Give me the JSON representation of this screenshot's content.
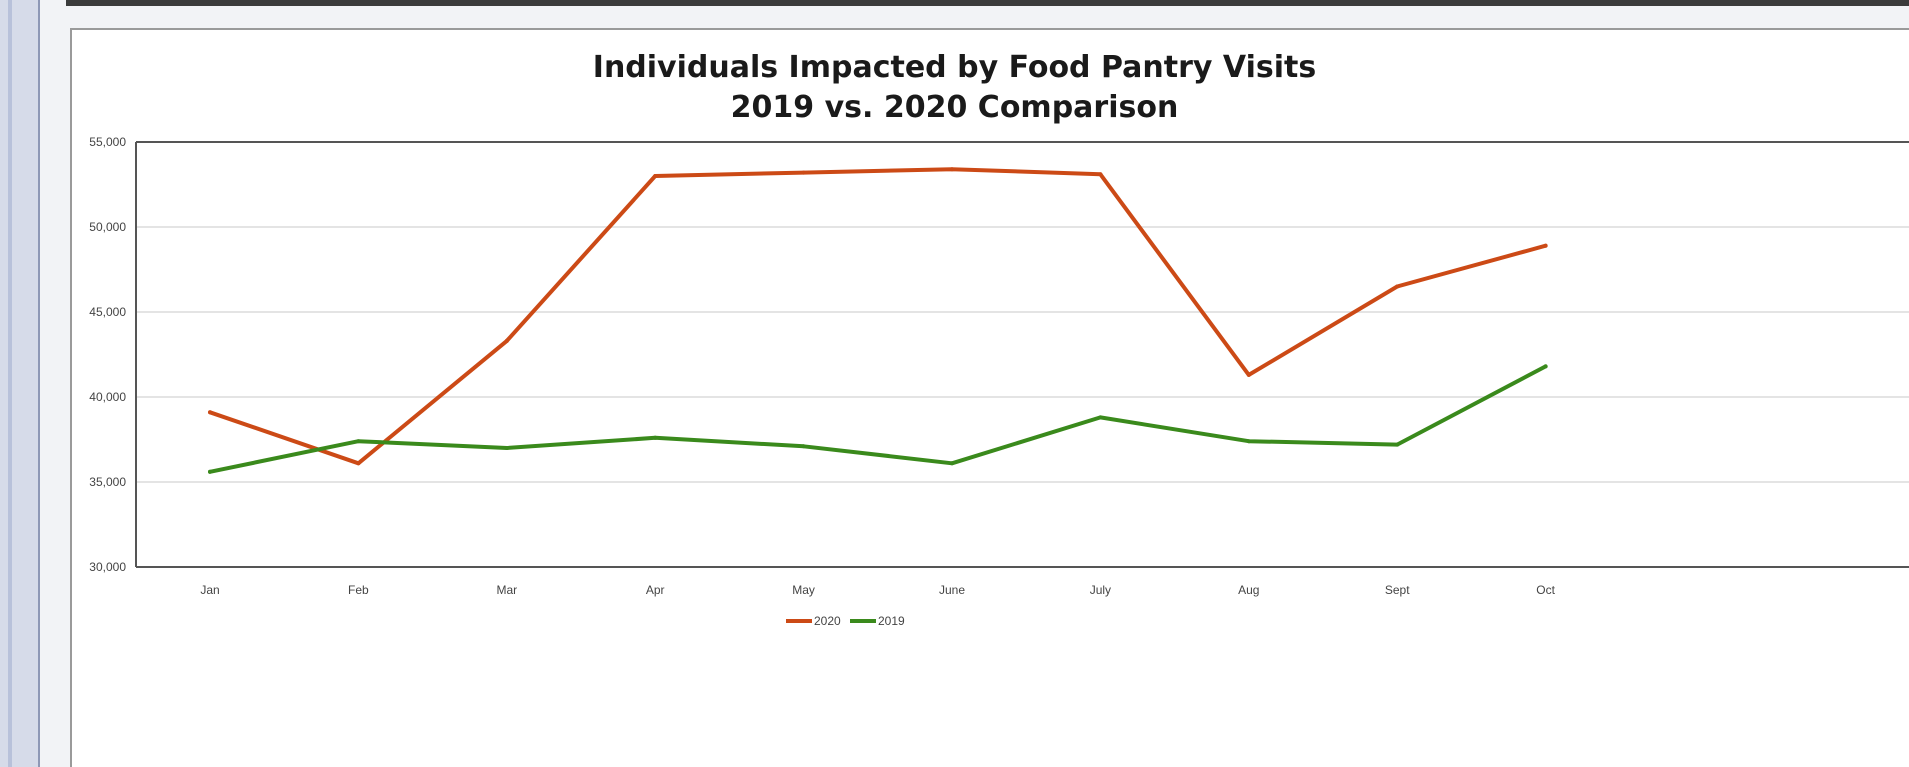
{
  "chart_data": {
    "type": "line",
    "title": "Individuals Impacted by Food Pantry Visits",
    "subtitle": "2019 vs. 2020 Comparison",
    "xlabel": "",
    "ylabel": "",
    "categories": [
      "Jan",
      "Feb",
      "Mar",
      "Apr",
      "May",
      "June",
      "July",
      "Aug",
      "Sept",
      "Oct"
    ],
    "ylim": [
      30000,
      55000
    ],
    "yticks": [
      55000,
      50000,
      45000,
      40000,
      35000,
      30000
    ],
    "ytick_labels": [
      "55,000",
      "50,000",
      "45,000",
      "40,000",
      "35,000",
      "30,000"
    ],
    "grid": true,
    "legend_position": "bottom",
    "series": [
      {
        "name": "2020",
        "color": "#cc4a16",
        "values": [
          39100,
          36100,
          43300,
          53000,
          53200,
          53400,
          53100,
          41300,
          46500,
          48900
        ]
      },
      {
        "name": "2019",
        "color": "#3a8a1c",
        "values": [
          35600,
          37400,
          37000,
          37600,
          37100,
          36100,
          38800,
          37400,
          37200,
          41800
        ]
      }
    ]
  }
}
